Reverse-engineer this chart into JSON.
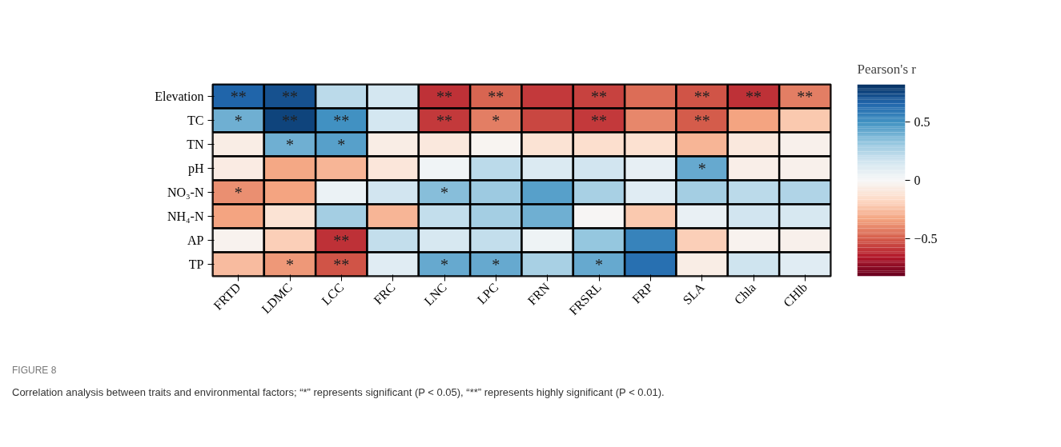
{
  "chart_data": {
    "type": "heatmap",
    "categories": [
      "FRTD",
      "LDMC",
      "LCC",
      "FRC",
      "LNC",
      "LPC",
      "FRN",
      "FRSRL",
      "FRP",
      "SLA",
      "Chla",
      "CHlb"
    ],
    "y_categories": [
      "Elevation",
      "TC",
      "TN",
      "pH",
      "NO₃-N",
      "NH₄-N",
      "AP",
      "TP"
    ],
    "cells": [
      [
        0.66,
        0.72,
        0.22,
        0.15,
        -0.6,
        -0.48,
        -0.58,
        -0.56,
        -0.46,
        -0.52,
        -0.6,
        -0.42
      ],
      [
        0.4,
        0.76,
        0.5,
        0.15,
        -0.58,
        -0.42,
        -0.55,
        -0.58,
        -0.4,
        -0.5,
        -0.33,
        -0.22
      ],
      [
        -0.06,
        0.4,
        0.45,
        -0.06,
        -0.09,
        -0.02,
        -0.12,
        -0.14,
        -0.13,
        -0.28,
        -0.09,
        -0.04
      ],
      [
        -0.07,
        -0.32,
        -0.28,
        -0.1,
        0.03,
        0.22,
        0.12,
        0.16,
        0.07,
        0.42,
        -0.05,
        -0.04
      ],
      [
        -0.38,
        -0.33,
        0.05,
        0.16,
        0.35,
        0.3,
        0.45,
        0.27,
        0.1,
        0.28,
        0.22,
        0.25
      ],
      [
        -0.33,
        -0.12,
        0.28,
        -0.28,
        0.2,
        0.28,
        0.4,
        -0.01,
        -0.22,
        0.06,
        0.16,
        0.14
      ],
      [
        -0.03,
        -0.2,
        -0.6,
        0.2,
        0.14,
        0.2,
        0.04,
        0.32,
        0.55,
        -0.2,
        -0.03,
        -0.04
      ],
      [
        -0.26,
        -0.36,
        -0.52,
        0.1,
        0.42,
        0.42,
        0.27,
        0.42,
        0.62,
        -0.06,
        0.17,
        0.1
      ]
    ],
    "cell_labels": [
      [
        "**",
        "**",
        null,
        null,
        "**",
        "**",
        null,
        "**",
        null,
        "**",
        "**",
        "**"
      ],
      [
        "*",
        "**",
        "**",
        null,
        "**",
        "*",
        null,
        "**",
        null,
        "**",
        null,
        null
      ],
      [
        null,
        "*",
        "*",
        null,
        null,
        null,
        null,
        null,
        null,
        null,
        null,
        null
      ],
      [
        null,
        null,
        null,
        null,
        null,
        null,
        null,
        null,
        null,
        "*",
        null,
        null
      ],
      [
        "*",
        null,
        null,
        null,
        "*",
        null,
        null,
        null,
        null,
        null,
        null,
        null
      ],
      [
        null,
        null,
        null,
        null,
        null,
        null,
        null,
        null,
        null,
        null,
        null,
        null
      ],
      [
        null,
        null,
        "**",
        null,
        null,
        null,
        null,
        null,
        null,
        null,
        null,
        null
      ],
      [
        null,
        "*",
        "**",
        null,
        "*",
        "*",
        null,
        "*",
        null,
        null,
        null,
        null
      ]
    ],
    "clabel": "Pearson's r",
    "clim": [
      -0.82,
      0.82
    ],
    "cticks": [
      0.5,
      0,
      -0.5
    ],
    "annotations": [
      "FIGURE 8",
      "Correlation analysis between traits and environmental factors; “*” represents significant (P < 0.05), “**” represents highly significant (P < 0.01)."
    ]
  }
}
